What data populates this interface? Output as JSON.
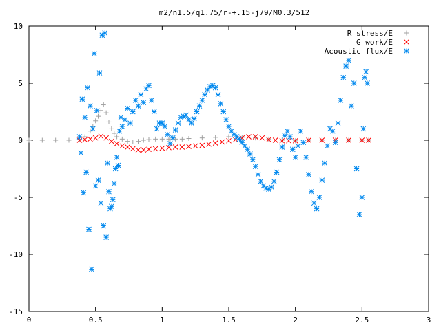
{
  "chart_data": {
    "type": "scatter",
    "title": "m2/n1.5/q1.75/r-+.15-j79/M0.3/512",
    "xlabel": "",
    "ylabel": "",
    "xlim": [
      0,
      3
    ],
    "ylim": [
      -15,
      10
    ],
    "x_ticks": [
      "0",
      "0.5",
      "1",
      "1.5",
      "2",
      "2.5",
      "3"
    ],
    "y_ticks": [
      "-15",
      "-10",
      "-5",
      "0",
      "5",
      "10"
    ],
    "grid": false,
    "legend_position": "top-right",
    "series": [
      {
        "name": "R stress/E",
        "marker": "+",
        "color": "#a0a0a0",
        "points": [
          [
            0.0,
            0.0
          ],
          [
            0.1,
            0.0
          ],
          [
            0.2,
            0.0
          ],
          [
            0.3,
            0.0
          ],
          [
            0.38,
            0.05
          ],
          [
            0.42,
            0.3
          ],
          [
            0.46,
            0.8
          ],
          [
            0.48,
            1.2
          ],
          [
            0.5,
            1.7
          ],
          [
            0.52,
            2.1
          ],
          [
            0.54,
            2.6
          ],
          [
            0.56,
            3.1
          ],
          [
            0.58,
            2.4
          ],
          [
            0.6,
            1.6
          ],
          [
            0.62,
            1.0
          ],
          [
            0.64,
            0.6
          ],
          [
            0.66,
            0.3
          ],
          [
            0.7,
            0.1
          ],
          [
            0.74,
            -0.1
          ],
          [
            0.78,
            -0.15
          ],
          [
            0.82,
            -0.1
          ],
          [
            0.86,
            0.0
          ],
          [
            0.9,
            0.05
          ],
          [
            0.95,
            0.1
          ],
          [
            1.0,
            0.1
          ],
          [
            1.05,
            0.1
          ],
          [
            1.1,
            0.1
          ],
          [
            1.15,
            0.1
          ],
          [
            1.2,
            0.15
          ],
          [
            1.3,
            0.2
          ],
          [
            1.4,
            0.25
          ],
          [
            1.5,
            0.3
          ],
          [
            1.6,
            0.25
          ],
          [
            1.7,
            0.2
          ],
          [
            1.8,
            0.1
          ],
          [
            1.9,
            0.0
          ],
          [
            2.0,
            -0.05
          ],
          [
            2.1,
            0.0
          ],
          [
            2.2,
            0.0
          ],
          [
            2.3,
            0.0
          ],
          [
            2.4,
            0.0
          ],
          [
            2.5,
            0.0
          ],
          [
            2.55,
            0.0
          ]
        ]
      },
      {
        "name": "G work/E",
        "marker": "x",
        "color": "#ff0000",
        "points": [
          [
            0.38,
            0.0
          ],
          [
            0.42,
            0.05
          ],
          [
            0.46,
            0.1
          ],
          [
            0.5,
            0.2
          ],
          [
            0.54,
            0.35
          ],
          [
            0.58,
            0.2
          ],
          [
            0.62,
            -0.1
          ],
          [
            0.66,
            -0.3
          ],
          [
            0.7,
            -0.5
          ],
          [
            0.74,
            -0.6
          ],
          [
            0.78,
            -0.75
          ],
          [
            0.82,
            -0.85
          ],
          [
            0.86,
            -0.85
          ],
          [
            0.9,
            -0.8
          ],
          [
            0.95,
            -0.75
          ],
          [
            1.0,
            -0.7
          ],
          [
            1.05,
            -0.65
          ],
          [
            1.1,
            -0.6
          ],
          [
            1.15,
            -0.6
          ],
          [
            1.2,
            -0.55
          ],
          [
            1.25,
            -0.5
          ],
          [
            1.3,
            -0.45
          ],
          [
            1.35,
            -0.35
          ],
          [
            1.4,
            -0.25
          ],
          [
            1.45,
            -0.15
          ],
          [
            1.5,
            -0.05
          ],
          [
            1.55,
            0.05
          ],
          [
            1.6,
            0.2
          ],
          [
            1.65,
            0.3
          ],
          [
            1.7,
            0.3
          ],
          [
            1.75,
            0.2
          ],
          [
            1.8,
            0.05
          ],
          [
            1.85,
            0.0
          ],
          [
            1.9,
            -0.05
          ],
          [
            1.95,
            -0.05
          ],
          [
            2.0,
            -0.05
          ],
          [
            2.1,
            0.0
          ],
          [
            2.2,
            0.0
          ],
          [
            2.3,
            0.0
          ],
          [
            2.4,
            0.0
          ],
          [
            2.5,
            0.0
          ],
          [
            2.55,
            0.0
          ]
        ]
      },
      {
        "name": "Acoustic flux/E",
        "marker": "*",
        "color": "#0088ee",
        "points": [
          [
            0.38,
            0.3
          ],
          [
            0.39,
            -1.1
          ],
          [
            0.4,
            3.6
          ],
          [
            0.41,
            -4.6
          ],
          [
            0.42,
            2.0
          ],
          [
            0.43,
            -2.8
          ],
          [
            0.44,
            4.6
          ],
          [
            0.45,
            -7.8
          ],
          [
            0.46,
            3.0
          ],
          [
            0.47,
            -11.3
          ],
          [
            0.48,
            1.0
          ],
          [
            0.49,
            7.6
          ],
          [
            0.5,
            -4.0
          ],
          [
            0.51,
            2.6
          ],
          [
            0.52,
            -3.5
          ],
          [
            0.53,
            5.9
          ],
          [
            0.54,
            -5.5
          ],
          [
            0.55,
            9.2
          ],
          [
            0.56,
            -7.5
          ],
          [
            0.57,
            9.4
          ],
          [
            0.58,
            -8.5
          ],
          [
            0.59,
            -2.0
          ],
          [
            0.6,
            -4.5
          ],
          [
            0.61,
            -6.0
          ],
          [
            0.62,
            -5.8
          ],
          [
            0.63,
            -5.2
          ],
          [
            0.64,
            -3.8
          ],
          [
            0.65,
            -2.5
          ],
          [
            0.66,
            -1.5
          ],
          [
            0.67,
            -2.2
          ],
          [
            0.68,
            0.8
          ],
          [
            0.69,
            2.0
          ],
          [
            0.7,
            1.2
          ],
          [
            0.72,
            1.8
          ],
          [
            0.74,
            2.8
          ],
          [
            0.76,
            1.5
          ],
          [
            0.78,
            2.5
          ],
          [
            0.8,
            3.5
          ],
          [
            0.82,
            3.0
          ],
          [
            0.84,
            4.0
          ],
          [
            0.86,
            3.3
          ],
          [
            0.88,
            4.5
          ],
          [
            0.9,
            4.8
          ],
          [
            0.92,
            3.5
          ],
          [
            0.94,
            2.5
          ],
          [
            0.96,
            1.0
          ],
          [
            0.98,
            1.5
          ],
          [
            1.0,
            1.5
          ],
          [
            1.02,
            1.2
          ],
          [
            1.04,
            0.5
          ],
          [
            1.06,
            -0.3
          ],
          [
            1.08,
            0.2
          ],
          [
            1.1,
            0.9
          ],
          [
            1.12,
            1.5
          ],
          [
            1.14,
            2.0
          ],
          [
            1.16,
            2.1
          ],
          [
            1.18,
            2.2
          ],
          [
            1.2,
            1.8
          ],
          [
            1.22,
            1.5
          ],
          [
            1.24,
            1.9
          ],
          [
            1.26,
            2.5
          ],
          [
            1.28,
            3.0
          ],
          [
            1.3,
            3.5
          ],
          [
            1.32,
            4.0
          ],
          [
            1.34,
            4.4
          ],
          [
            1.36,
            4.7
          ],
          [
            1.38,
            4.8
          ],
          [
            1.4,
            4.6
          ],
          [
            1.42,
            4.0
          ],
          [
            1.44,
            3.2
          ],
          [
            1.46,
            2.5
          ],
          [
            1.48,
            1.8
          ],
          [
            1.5,
            1.2
          ],
          [
            1.52,
            0.8
          ],
          [
            1.54,
            0.5
          ],
          [
            1.56,
            0.3
          ],
          [
            1.58,
            0.1
          ],
          [
            1.6,
            -0.2
          ],
          [
            1.62,
            -0.5
          ],
          [
            1.64,
            -0.8
          ],
          [
            1.66,
            -1.2
          ],
          [
            1.68,
            -1.7
          ],
          [
            1.7,
            -2.3
          ],
          [
            1.72,
            -3.0
          ],
          [
            1.74,
            -3.6
          ],
          [
            1.76,
            -4.0
          ],
          [
            1.78,
            -4.2
          ],
          [
            1.8,
            -4.3
          ],
          [
            1.82,
            -4.1
          ],
          [
            1.84,
            -3.6
          ],
          [
            1.86,
            -2.8
          ],
          [
            1.88,
            -1.7
          ],
          [
            1.9,
            -0.6
          ],
          [
            1.92,
            0.4
          ],
          [
            1.94,
            0.8
          ],
          [
            1.96,
            0.3
          ],
          [
            1.98,
            -0.8
          ],
          [
            2.0,
            -1.5
          ],
          [
            2.02,
            -0.5
          ],
          [
            2.04,
            0.8
          ],
          [
            2.06,
            -0.2
          ],
          [
            2.08,
            -1.5
          ],
          [
            2.1,
            -3.0
          ],
          [
            2.12,
            -4.5
          ],
          [
            2.14,
            -5.5
          ],
          [
            2.16,
            -6.0
          ],
          [
            2.18,
            -5.0
          ],
          [
            2.2,
            -3.5
          ],
          [
            2.22,
            -2.0
          ],
          [
            2.24,
            -0.5
          ],
          [
            2.26,
            1.0
          ],
          [
            2.28,
            0.8
          ],
          [
            2.3,
            -0.2
          ],
          [
            2.32,
            1.5
          ],
          [
            2.34,
            3.5
          ],
          [
            2.36,
            5.5
          ],
          [
            2.38,
            6.5
          ],
          [
            2.4,
            7.0
          ],
          [
            2.42,
            3.0
          ],
          [
            2.44,
            5.0
          ],
          [
            2.46,
            -2.5
          ],
          [
            2.48,
            -6.5
          ],
          [
            2.5,
            -5.0
          ],
          [
            2.51,
            1.0
          ],
          [
            2.52,
            5.5
          ],
          [
            2.53,
            6.0
          ],
          [
            2.54,
            5.0
          ]
        ]
      }
    ]
  }
}
